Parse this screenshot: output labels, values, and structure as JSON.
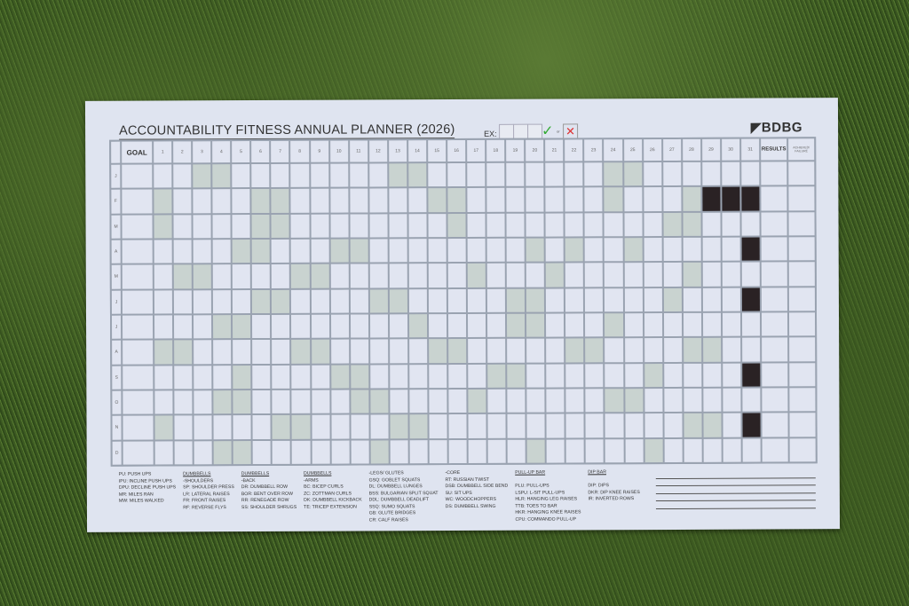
{
  "title": "ACCOUNTABILITY FITNESS ANNUAL PLANNER (2026)",
  "example_label": "EX:",
  "example_mid": "or",
  "brand": "BDBG",
  "header": {
    "goal": "GOAL",
    "results": "RESULTS",
    "achieved": "ACHIEVED/ FAILURE"
  },
  "days": [
    "1",
    "2",
    "3",
    "4",
    "5",
    "6",
    "7",
    "8",
    "9",
    "10",
    "11",
    "12",
    "13",
    "14",
    "15",
    "16",
    "17",
    "18",
    "19",
    "20",
    "21",
    "22",
    "23",
    "24",
    "25",
    "26",
    "27",
    "28",
    "29",
    "30",
    "31"
  ],
  "months": [
    "J",
    "F",
    "M",
    "A",
    "M",
    "J",
    "J",
    "A",
    "S",
    "O",
    "N",
    "D"
  ],
  "blocked_days": {
    "F": [
      "29",
      "30",
      "31"
    ],
    "A": [
      "31"
    ],
    "J6": [
      "31"
    ],
    "S": [
      "31"
    ],
    "N": [
      "31"
    ]
  },
  "legend": [
    {
      "heading": "",
      "items": [
        "PU: PUSH UPS",
        "IPU: INCLINE PUSH UPS",
        "DPU: DECLINE PUSH UPS",
        "MR: MILES RAN",
        "MW: MILES WALKED"
      ]
    },
    {
      "heading": "DUMBBELLS",
      "items": [
        "-SHOULDERS",
        "SP: SHOULDER PRESS",
        "LR: LATERAL RAISES",
        "FR: FRONT RAISES",
        "RF: REVERSE FLYS"
      ]
    },
    {
      "heading": "DUMBBELLS",
      "items": [
        "-BACK",
        "DR: DUMBBELL ROW",
        "BOR: BENT OVER ROW",
        "RR: RENEGADE ROW",
        "SS: SHOULDER SHRUGS"
      ]
    },
    {
      "heading": "DUMBBELLS",
      "items": [
        "-ARMS",
        "BC: BICEP CURLS",
        "ZC: ZOTTMAN CURLS",
        "DK: DUMBBELL KICKBACK",
        "TE: TRICEP EXTENSION"
      ]
    },
    {
      "heading": "",
      "items": [
        "-LEGS/ GLUTES",
        "GSQ: GOBLET SQUATS",
        "DL: DUMBBELL LUNGES",
        "BSS: BULGARIAN SPLIT SQUAT",
        "DDL: DUMBBELL DEADLIFT",
        "SSQ: SUMO SQUATS",
        "GB: GLUTE BRIDGES",
        "CR: CALF RAISES"
      ]
    },
    {
      "heading": "",
      "items": [
        "-CORE",
        "RT: RUSSIAN TWIST",
        "DSB: DUMBBELL SIDE BEND",
        "SU: SIT UPS",
        "WC: WOODCHOPPERS",
        "DS: DUMBBELL SWING"
      ]
    },
    {
      "heading": "PULL-UP BAR",
      "items": [
        "",
        "PLU: PULL-UPS",
        "LSPU: L-SIT PULL-UPS",
        "HLR: HANGING LEG RAISES",
        "TTB: TOES TO BAR",
        "HKR: HANGING KNEE RAISES",
        "CPU: COMMANDO PULL-UP"
      ]
    },
    {
      "heading": "DIP BAR",
      "items": [
        "",
        "DIP: DIPS",
        "DKR: DIP KNEE RAISES",
        "IR: INVERTED ROWS"
      ]
    }
  ]
}
